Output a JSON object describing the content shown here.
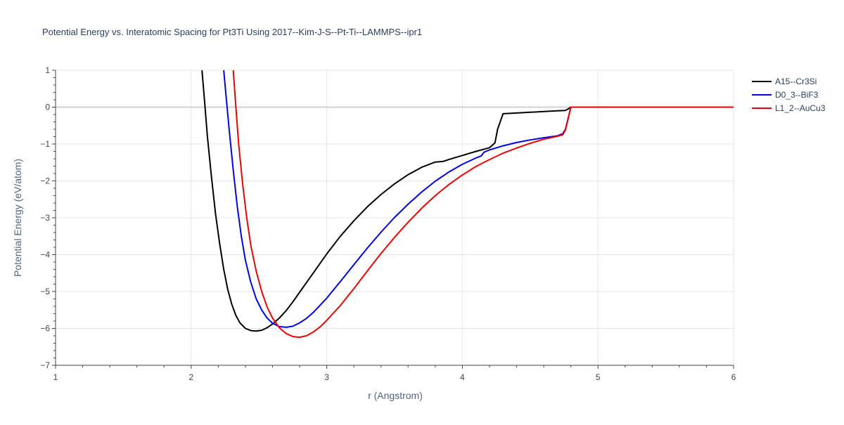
{
  "chart_data": {
    "type": "line",
    "title": "Potential Energy vs. Interatomic Spacing for Pt3Ti Using 2017--Kim-J-S--Pt-Ti--LAMMPS--ipr1",
    "xlabel": "r (Angstrom)",
    "ylabel": "Potential Energy (eV/atom)",
    "xlim": [
      1,
      6
    ],
    "ylim": [
      -7,
      1
    ],
    "xticks": [
      1,
      2,
      3,
      4,
      5,
      6
    ],
    "yticks": [
      -7,
      -6,
      -5,
      -4,
      -3,
      -2,
      -1,
      0,
      1
    ],
    "xtick_labels": [
      "1",
      "2",
      "3",
      "4",
      "5",
      "6"
    ],
    "ytick_labels": [
      "−7",
      "−6",
      "−5",
      "−4",
      "−3",
      "−2",
      "−1",
      "0",
      "1"
    ],
    "grid": true,
    "legend_position": "top-right",
    "series": [
      {
        "name": "A15--Cr3Si",
        "color": "#000000",
        "x": [
          2.08,
          2.1,
          2.12,
          2.15,
          2.18,
          2.21,
          2.24,
          2.27,
          2.3,
          2.33,
          2.36,
          2.4,
          2.44,
          2.48,
          2.52,
          2.56,
          2.6,
          2.65,
          2.7,
          2.75,
          2.8,
          2.9,
          3.0,
          3.1,
          3.2,
          3.3,
          3.4,
          3.5,
          3.6,
          3.7,
          3.8,
          3.86,
          3.9,
          4.0,
          4.1,
          4.2,
          4.24,
          4.26,
          4.3,
          4.4,
          4.5,
          4.6,
          4.7,
          4.76,
          4.78,
          4.8,
          4.9,
          5.0,
          5.5,
          6.0
        ],
        "y": [
          1.0,
          0.1,
          -0.8,
          -1.9,
          -2.9,
          -3.7,
          -4.4,
          -4.95,
          -5.35,
          -5.65,
          -5.85,
          -6.0,
          -6.06,
          -6.07,
          -6.05,
          -5.98,
          -5.88,
          -5.72,
          -5.52,
          -5.28,
          -5.02,
          -4.5,
          -3.98,
          -3.5,
          -3.08,
          -2.7,
          -2.37,
          -2.08,
          -1.83,
          -1.63,
          -1.49,
          -1.47,
          -1.42,
          -1.31,
          -1.2,
          -1.1,
          -0.97,
          -0.6,
          -0.18,
          -0.16,
          -0.14,
          -0.12,
          -0.1,
          -0.09,
          -0.05,
          0.0,
          0.0,
          0.0,
          0.0,
          0.0
        ]
      },
      {
        "name": "D0_3--BiF3",
        "color": "#0000ee",
        "x": [
          2.24,
          2.26,
          2.28,
          2.31,
          2.34,
          2.37,
          2.4,
          2.44,
          2.48,
          2.52,
          2.56,
          2.6,
          2.65,
          2.7,
          2.75,
          2.8,
          2.85,
          2.9,
          3.0,
          3.1,
          3.2,
          3.3,
          3.4,
          3.5,
          3.6,
          3.7,
          3.8,
          3.9,
          4.0,
          4.1,
          4.14,
          4.16,
          4.2,
          4.3,
          4.4,
          4.5,
          4.6,
          4.7,
          4.74,
          4.76,
          4.78,
          4.8,
          5.0,
          5.5,
          6.0
        ],
        "y": [
          1.0,
          0.2,
          -0.6,
          -1.7,
          -2.7,
          -3.5,
          -4.15,
          -4.75,
          -5.2,
          -5.5,
          -5.72,
          -5.86,
          -5.95,
          -5.97,
          -5.94,
          -5.85,
          -5.73,
          -5.57,
          -5.18,
          -4.73,
          -4.27,
          -3.82,
          -3.39,
          -2.99,
          -2.63,
          -2.3,
          -2.01,
          -1.76,
          -1.55,
          -1.38,
          -1.32,
          -1.22,
          -1.16,
          -1.05,
          -0.96,
          -0.89,
          -0.83,
          -0.78,
          -0.72,
          -0.6,
          -0.3,
          0.0,
          0.0,
          0.0,
          0.0
        ]
      },
      {
        "name": "L1_2--AuCu3",
        "color": "#ee0000",
        "x": [
          2.31,
          2.33,
          2.35,
          2.38,
          2.41,
          2.44,
          2.48,
          2.52,
          2.56,
          2.6,
          2.65,
          2.7,
          2.75,
          2.8,
          2.85,
          2.9,
          2.95,
          3.0,
          3.1,
          3.2,
          3.3,
          3.4,
          3.5,
          3.6,
          3.7,
          3.8,
          3.9,
          4.0,
          4.1,
          4.2,
          4.3,
          4.4,
          4.5,
          4.6,
          4.7,
          4.74,
          4.76,
          4.78,
          4.8,
          5.0,
          5.5,
          6.0
        ],
        "y": [
          1.0,
          0.0,
          -1.0,
          -2.1,
          -3.0,
          -3.75,
          -4.45,
          -5.0,
          -5.42,
          -5.72,
          -5.98,
          -6.14,
          -6.22,
          -6.24,
          -6.2,
          -6.1,
          -5.96,
          -5.78,
          -5.38,
          -4.92,
          -4.44,
          -3.97,
          -3.53,
          -3.12,
          -2.74,
          -2.4,
          -2.1,
          -1.84,
          -1.61,
          -1.42,
          -1.25,
          -1.11,
          -0.98,
          -0.87,
          -0.79,
          -0.75,
          -0.62,
          -0.32,
          0.0,
          0.0,
          0.0,
          0.0
        ]
      }
    ]
  }
}
